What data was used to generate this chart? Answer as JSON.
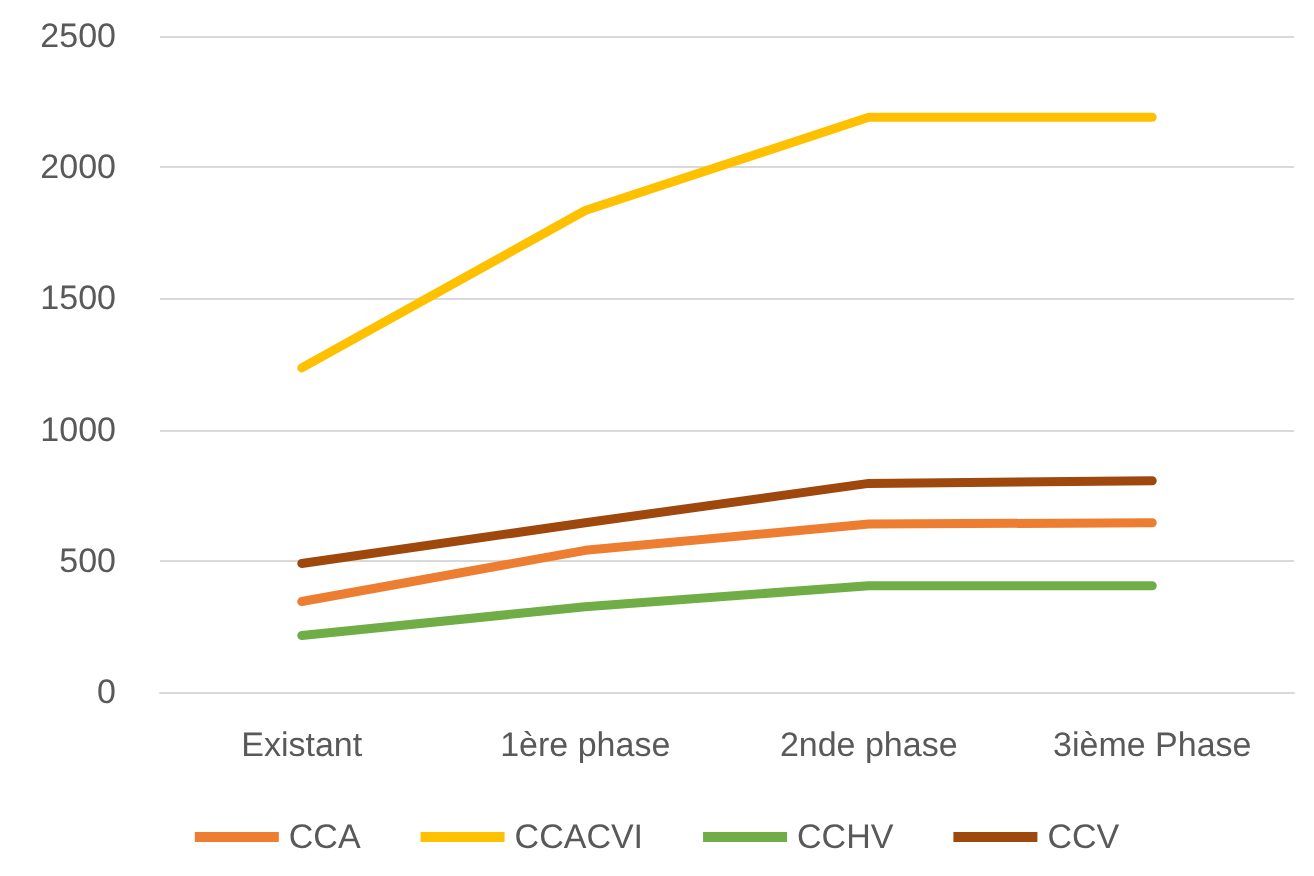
{
  "chart_data": {
    "type": "line",
    "categories": [
      "Existant",
      "1ère phase",
      "2nde phase",
      "3ième Phase"
    ],
    "series": [
      {
        "name": "CCA",
        "color": "#ed7d31",
        "values": [
          345,
          540,
          640,
          645
        ]
      },
      {
        "name": "CCACVI",
        "color": "#ffc000",
        "values": [
          1235,
          1835,
          2190,
          2190
        ]
      },
      {
        "name": "CCHV",
        "color": "#70ad47",
        "values": [
          215,
          325,
          405,
          405
        ]
      },
      {
        "name": "CCV",
        "color": "#9e480e",
        "values": [
          490,
          645,
          795,
          805
        ]
      }
    ],
    "ylim": [
      0,
      2500
    ],
    "yticks": [
      0,
      500,
      1000,
      1500,
      2000,
      2500
    ],
    "grid": "y",
    "legend": "bottom",
    "marker": "none",
    "line_style": "solid"
  }
}
